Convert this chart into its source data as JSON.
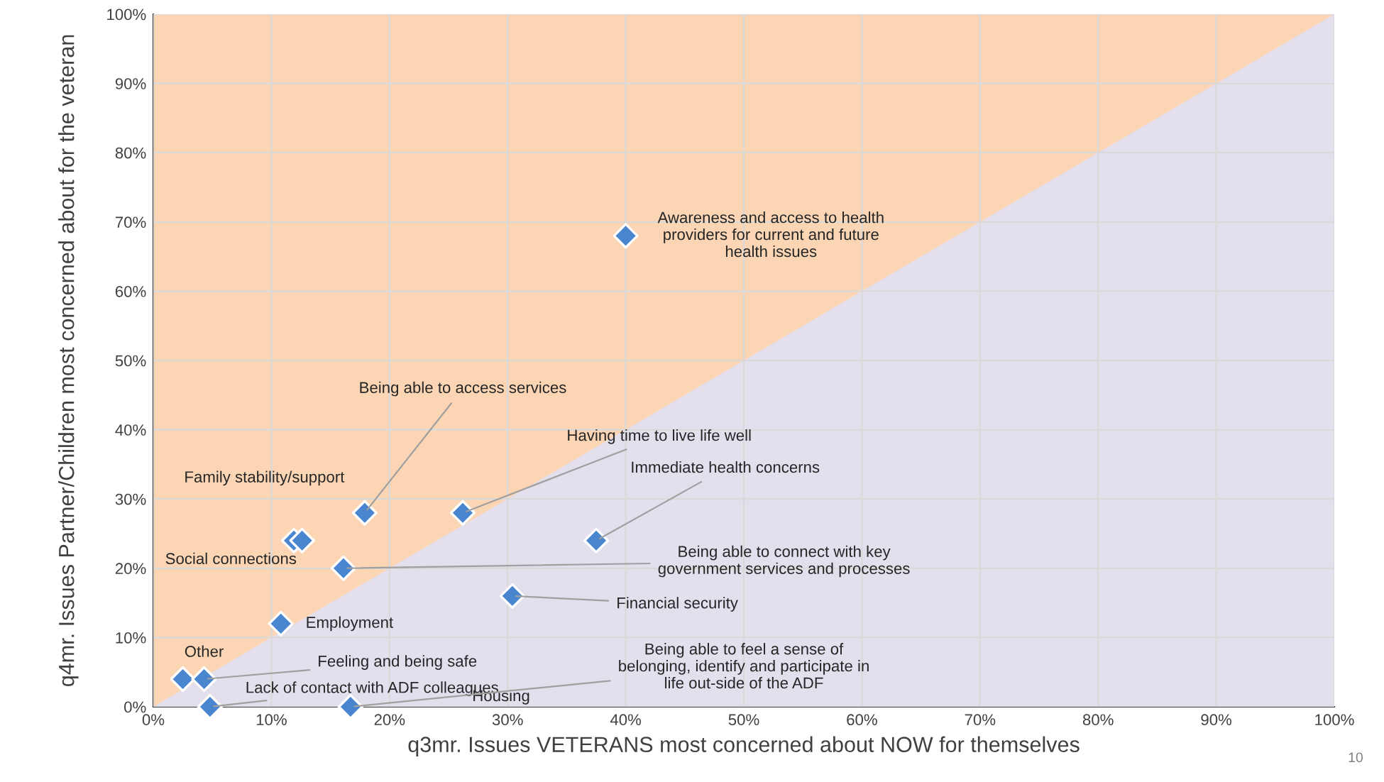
{
  "chart_data": {
    "type": "scatter",
    "xlabel": "q3mr. Issues VETERANS most concerned about NOW for themselves",
    "ylabel": "q4mr. Issues Partner/Children most concerned about for the veteran",
    "series": [
      {
        "color": "#4a86d0",
        "marker": "diamond",
        "x": [
          40.0,
          17.9,
          26.2,
          37.5,
          11.9,
          12.6,
          16.1,
          30.4,
          10.8,
          2.5,
          4.3,
          4.8,
          16.7
        ],
        "values": [
          68,
          28,
          28,
          24,
          24,
          24,
          20,
          16,
          12,
          4,
          4,
          0,
          0
        ]
      },
      {
        "type": "area",
        "color": "#e4dfec",
        "x": [
          0,
          100
        ],
        "values": [
          0,
          100
        ]
      }
    ],
    "grid": true,
    "xlim": [
      0,
      100
    ],
    "ylim": [
      0,
      100
    ],
    "xticks": [
      {
        "value": 0,
        "label": "0%"
      },
      {
        "value": 10,
        "label": "10%"
      },
      {
        "value": 20,
        "label": "20%"
      },
      {
        "value": 30,
        "label": "30%"
      },
      {
        "value": 40,
        "label": "40%"
      },
      {
        "value": 50,
        "label": "50%"
      },
      {
        "value": 60,
        "label": "60%"
      },
      {
        "value": 70,
        "label": "70%"
      },
      {
        "value": 80,
        "label": "80%"
      },
      {
        "value": 90,
        "label": "90%"
      },
      {
        "value": 100,
        "label": "100%"
      }
    ],
    "yticks": [
      {
        "value": 0,
        "label": "0%"
      },
      {
        "value": 10,
        "label": "10%"
      },
      {
        "value": 20,
        "label": "20%"
      },
      {
        "value": 30,
        "label": "30%"
      },
      {
        "value": 40,
        "label": "40%"
      },
      {
        "value": 50,
        "label": "50%"
      },
      {
        "value": 60,
        "label": "60%"
      },
      {
        "value": 70,
        "label": "70%"
      },
      {
        "value": 80,
        "label": "80%"
      },
      {
        "value": 90,
        "label": "90%"
      },
      {
        "value": 100,
        "label": "100%"
      }
    ],
    "annotations": [
      {
        "text": "Awareness and access to health\nproviders for current and future\nhealth issues",
        "x": 40.0,
        "y": 68
      },
      {
        "text": "Being able to access services",
        "x": 17.9,
        "y": 28
      },
      {
        "text": "Having time to live life well",
        "x": 26.2,
        "y": 28
      },
      {
        "text": "Immediate health concerns",
        "x": 37.5,
        "y": 24
      },
      "Family stability/support",
      {
        "text": "Social connections",
        "x": 12.6,
        "y": 24
      },
      {
        "text": "Being able to connect with key\ngovernment services and processes",
        "x": 16.1,
        "y": 20
      },
      {
        "text": "Financial security",
        "x": 30.4,
        "y": 16
      },
      {
        "text": "Employment",
        "x": 10.8,
        "y": 12
      },
      {
        "text": "Other",
        "x": 2.5,
        "y": 4
      },
      {
        "text": "Feeling and being safe",
        "x": 4.3,
        "y": 4
      },
      {
        "text": "Lack of contact with ADF colleagues",
        "x": 4.8,
        "y": 0
      },
      "Housing",
      {
        "text": "Being able to feel a sense of\nbelonging, identify and participate in\nlife out-side of the ADF",
        "x": 16.7,
        "y": 0
      },
      "10"
    ]
  }
}
